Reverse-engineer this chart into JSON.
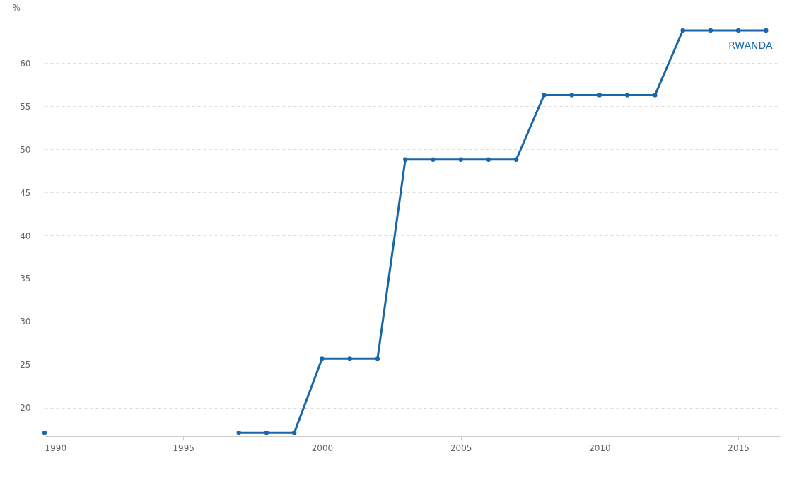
{
  "chart_data": {
    "type": "line",
    "ylabel": "%",
    "x": [
      1990,
      1991,
      1992,
      1993,
      1994,
      1995,
      1996,
      1997,
      1998,
      1999,
      2000,
      2001,
      2002,
      2003,
      2004,
      2005,
      2006,
      2007,
      2008,
      2009,
      2010,
      2011,
      2012,
      2013,
      2014,
      2015,
      2016
    ],
    "series": [
      {
        "name": "RWANDA",
        "color": "#1a66a6",
        "values": [
          17.1,
          null,
          null,
          null,
          null,
          null,
          null,
          17.1,
          17.1,
          17.1,
          25.7,
          25.7,
          25.7,
          48.8,
          48.8,
          48.8,
          48.8,
          48.8,
          56.3,
          56.3,
          56.3,
          56.3,
          56.3,
          63.8,
          63.8,
          63.8,
          63.8
        ]
      }
    ],
    "xlim": [
      1990,
      2016.5
    ],
    "xticks": [
      1990,
      1995,
      2000,
      2005,
      2010,
      2015
    ],
    "ylim": [
      16.7,
      64.7
    ],
    "yticks": [
      20,
      25,
      30,
      35,
      40,
      45,
      50,
      55,
      60
    ],
    "grid": "y",
    "marker": "circle",
    "line_style": "solid",
    "legend": false
  }
}
